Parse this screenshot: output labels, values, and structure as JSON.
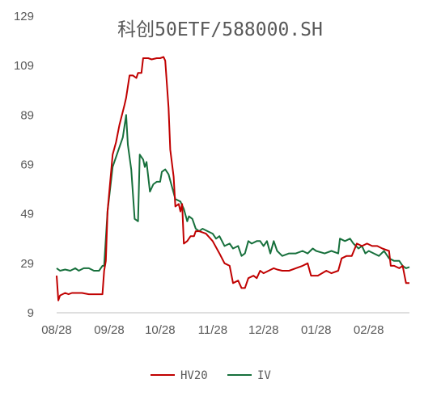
{
  "chart_data": {
    "type": "line",
    "title": "科创50ETF/588000.SH",
    "xlabel": "",
    "ylabel": "",
    "ylim": [
      9,
      129
    ],
    "yticks": [
      9,
      29,
      49,
      69,
      89,
      109,
      129
    ],
    "xlim": [
      "2024-08-28",
      "2025-03-24"
    ],
    "xticks": [
      {
        "date": "2024-08-28",
        "label": "08/28"
      },
      {
        "date": "2024-09-28",
        "label": "09/28"
      },
      {
        "date": "2024-10-28",
        "label": "10/28"
      },
      {
        "date": "2024-11-28",
        "label": "11/28"
      },
      {
        "date": "2024-12-28",
        "label": "12/28"
      },
      {
        "date": "2025-01-28",
        "label": "01/28"
      },
      {
        "date": "2025-02-28",
        "label": "02/28"
      }
    ],
    "grid": false,
    "legend_position": "bottom",
    "series": [
      {
        "name": "HV20",
        "color": "#c00000",
        "points": [
          [
            "2024-08-28",
            24
          ],
          [
            "2024-08-29",
            14
          ],
          [
            "2024-08-30",
            16
          ],
          [
            "2024-09-02",
            17
          ],
          [
            "2024-09-04",
            16.5
          ],
          [
            "2024-09-06",
            17
          ],
          [
            "2024-09-09",
            17
          ],
          [
            "2024-09-12",
            17
          ],
          [
            "2024-09-16",
            16.5
          ],
          [
            "2024-09-20",
            16.5
          ],
          [
            "2024-09-24",
            16.5
          ],
          [
            "2024-09-25",
            26
          ],
          [
            "2024-09-26",
            30
          ],
          [
            "2024-09-27",
            50
          ],
          [
            "2024-09-30",
            73
          ],
          [
            "2024-10-02",
            78
          ],
          [
            "2024-10-04",
            85
          ],
          [
            "2024-10-07",
            93
          ],
          [
            "2024-10-08",
            96
          ],
          [
            "2024-10-10",
            105
          ],
          [
            "2024-10-12",
            105
          ],
          [
            "2024-10-14",
            104
          ],
          [
            "2024-10-15",
            106
          ],
          [
            "2024-10-17",
            106
          ],
          [
            "2024-10-18",
            112
          ],
          [
            "2024-10-21",
            112
          ],
          [
            "2024-10-23",
            111.5
          ],
          [
            "2024-10-26",
            112
          ],
          [
            "2024-10-28",
            112
          ],
          [
            "2024-10-30",
            112.5
          ],
          [
            "2024-10-31",
            111
          ],
          [
            "2024-11-02",
            92
          ],
          [
            "2024-11-03",
            75
          ],
          [
            "2024-11-05",
            64
          ],
          [
            "2024-11-06",
            52
          ],
          [
            "2024-11-08",
            53
          ],
          [
            "2024-11-09",
            50
          ],
          [
            "2024-11-10",
            53
          ],
          [
            "2024-11-11",
            37
          ],
          [
            "2024-11-13",
            38
          ],
          [
            "2024-11-15",
            40
          ],
          [
            "2024-11-17",
            40
          ],
          [
            "2024-11-18",
            42
          ],
          [
            "2024-11-20",
            42
          ],
          [
            "2024-11-24",
            41
          ],
          [
            "2024-11-28",
            38
          ],
          [
            "2024-12-02",
            33
          ],
          [
            "2024-12-05",
            29
          ],
          [
            "2024-12-08",
            28
          ],
          [
            "2024-12-10",
            21
          ],
          [
            "2024-12-13",
            22
          ],
          [
            "2024-12-15",
            19
          ],
          [
            "2024-12-17",
            19
          ],
          [
            "2024-12-19",
            23
          ],
          [
            "2024-12-22",
            24
          ],
          [
            "2024-12-24",
            23
          ],
          [
            "2024-12-26",
            26
          ],
          [
            "2024-12-28",
            25
          ],
          [
            "2024-12-31",
            26
          ],
          [
            "2025-01-03",
            27
          ],
          [
            "2025-01-05",
            26.5
          ],
          [
            "2025-01-08",
            26
          ],
          [
            "2025-01-12",
            26
          ],
          [
            "2025-01-16",
            27
          ],
          [
            "2025-01-20",
            28
          ],
          [
            "2025-01-23",
            29
          ],
          [
            "2025-01-25",
            24
          ],
          [
            "2025-01-29",
            24
          ],
          [
            "2025-02-03",
            26
          ],
          [
            "2025-02-06",
            25
          ],
          [
            "2025-02-10",
            26
          ],
          [
            "2025-02-12",
            31
          ],
          [
            "2025-02-15",
            32
          ],
          [
            "2025-02-18",
            32
          ],
          [
            "2025-02-21",
            37
          ],
          [
            "2025-02-24",
            36
          ],
          [
            "2025-02-27",
            37
          ],
          [
            "2025-03-02",
            36
          ],
          [
            "2025-03-05",
            36
          ],
          [
            "2025-03-08",
            35
          ],
          [
            "2025-03-12",
            34
          ],
          [
            "2025-03-13",
            28
          ],
          [
            "2025-03-15",
            28
          ],
          [
            "2025-03-18",
            27
          ],
          [
            "2025-03-20",
            28
          ],
          [
            "2025-03-22",
            21
          ],
          [
            "2025-03-24",
            21
          ]
        ]
      },
      {
        "name": "IV",
        "color": "#17703c",
        "points": [
          [
            "2024-08-28",
            27
          ],
          [
            "2024-08-30",
            26
          ],
          [
            "2024-09-02",
            26.5
          ],
          [
            "2024-09-05",
            26
          ],
          [
            "2024-09-08",
            27
          ],
          [
            "2024-09-10",
            26
          ],
          [
            "2024-09-13",
            27
          ],
          [
            "2024-09-16",
            27
          ],
          [
            "2024-09-19",
            26
          ],
          [
            "2024-09-22",
            26
          ],
          [
            "2024-09-24",
            28
          ],
          [
            "2024-09-25",
            28
          ],
          [
            "2024-09-27",
            50
          ],
          [
            "2024-09-30",
            68
          ],
          [
            "2024-10-03",
            74
          ],
          [
            "2024-10-06",
            80
          ],
          [
            "2024-10-08",
            89
          ],
          [
            "2024-10-09",
            77
          ],
          [
            "2024-10-11",
            67
          ],
          [
            "2024-10-12",
            57
          ],
          [
            "2024-10-13",
            47
          ],
          [
            "2024-10-15",
            46
          ],
          [
            "2024-10-16",
            73
          ],
          [
            "2024-10-18",
            71
          ],
          [
            "2024-10-19",
            68
          ],
          [
            "2024-10-20",
            70
          ],
          [
            "2024-10-22",
            58
          ],
          [
            "2024-10-24",
            61
          ],
          [
            "2024-10-26",
            62
          ],
          [
            "2024-10-28",
            62
          ],
          [
            "2024-10-29",
            66
          ],
          [
            "2024-10-31",
            67
          ],
          [
            "2024-11-01",
            66
          ],
          [
            "2024-11-02",
            65
          ],
          [
            "2024-11-04",
            60
          ],
          [
            "2024-11-06",
            55
          ],
          [
            "2024-11-09",
            54
          ],
          [
            "2024-11-11",
            51
          ],
          [
            "2024-11-13",
            46
          ],
          [
            "2024-11-14",
            48
          ],
          [
            "2024-11-16",
            47
          ],
          [
            "2024-11-18",
            43
          ],
          [
            "2024-11-20",
            42
          ],
          [
            "2024-11-22",
            43
          ],
          [
            "2024-11-25",
            42
          ],
          [
            "2024-11-28",
            41
          ],
          [
            "2024-11-30",
            39
          ],
          [
            "2024-12-02",
            40
          ],
          [
            "2024-12-05",
            36
          ],
          [
            "2024-12-08",
            37
          ],
          [
            "2024-12-10",
            35
          ],
          [
            "2024-12-13",
            36
          ],
          [
            "2024-12-15",
            32
          ],
          [
            "2024-12-17",
            33
          ],
          [
            "2024-12-19",
            38
          ],
          [
            "2024-12-21",
            37
          ],
          [
            "2024-12-24",
            38
          ],
          [
            "2024-12-26",
            38
          ],
          [
            "2024-12-28",
            36
          ],
          [
            "2024-12-30",
            38
          ],
          [
            "2025-01-01",
            33
          ],
          [
            "2025-01-03",
            38
          ],
          [
            "2025-01-05",
            34
          ],
          [
            "2025-01-08",
            32
          ],
          [
            "2025-01-12",
            33
          ],
          [
            "2025-01-16",
            33
          ],
          [
            "2025-01-20",
            34
          ],
          [
            "2025-01-23",
            33
          ],
          [
            "2025-01-26",
            35
          ],
          [
            "2025-01-28",
            34
          ],
          [
            "2025-02-02",
            33
          ],
          [
            "2025-02-06",
            34
          ],
          [
            "2025-02-10",
            33
          ],
          [
            "2025-02-11",
            39
          ],
          [
            "2025-02-14",
            38
          ],
          [
            "2025-02-17",
            39
          ],
          [
            "2025-02-19",
            37
          ],
          [
            "2025-02-22",
            35
          ],
          [
            "2025-02-24",
            36
          ],
          [
            "2025-02-26",
            33
          ],
          [
            "2025-02-28",
            34
          ],
          [
            "2025-03-03",
            33
          ],
          [
            "2025-03-06",
            32
          ],
          [
            "2025-03-09",
            34
          ],
          [
            "2025-03-12",
            31
          ],
          [
            "2025-03-15",
            30
          ],
          [
            "2025-03-18",
            30
          ],
          [
            "2025-03-20",
            28
          ],
          [
            "2025-03-22",
            27
          ],
          [
            "2025-03-24",
            27.5
          ]
        ]
      }
    ]
  }
}
